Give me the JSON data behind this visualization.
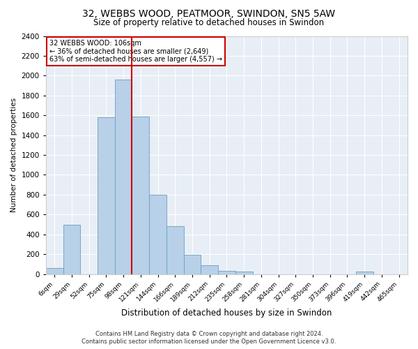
{
  "title": "32, WEBBS WOOD, PEATMOOR, SWINDON, SN5 5AW",
  "subtitle": "Size of property relative to detached houses in Swindon",
  "xlabel": "Distribution of detached houses by size in Swindon",
  "ylabel": "Number of detached properties",
  "bar_color": "#b8d0e8",
  "bar_edge_color": "#6a9fc0",
  "background_color": "#e8eef5",
  "bins": [
    "6sqm",
    "29sqm",
    "52sqm",
    "75sqm",
    "98sqm",
    "121sqm",
    "144sqm",
    "166sqm",
    "189sqm",
    "212sqm",
    "235sqm",
    "258sqm",
    "281sqm",
    "304sqm",
    "327sqm",
    "350sqm",
    "373sqm",
    "396sqm",
    "419sqm",
    "442sqm",
    "465sqm"
  ],
  "values": [
    60,
    500,
    0,
    1580,
    1960,
    1590,
    800,
    480,
    195,
    90,
    35,
    25,
    0,
    0,
    0,
    0,
    0,
    0,
    25,
    0,
    0
  ],
  "ylim": [
    0,
    2400
  ],
  "yticks": [
    0,
    200,
    400,
    600,
    800,
    1000,
    1200,
    1400,
    1600,
    1800,
    2000,
    2200,
    2400
  ],
  "vline_index": 4.5,
  "property_label": "32 WEBBS WOOD: 106sqm",
  "annotation_line1": "← 36% of detached houses are smaller (2,649)",
  "annotation_line2": "63% of semi-detached houses are larger (4,557) →",
  "annotation_box_color": "white",
  "annotation_box_edge": "#cc0000",
  "vline_color": "#cc0000",
  "footer1": "Contains HM Land Registry data © Crown copyright and database right 2024.",
  "footer2": "Contains public sector information licensed under the Open Government Licence v3.0."
}
